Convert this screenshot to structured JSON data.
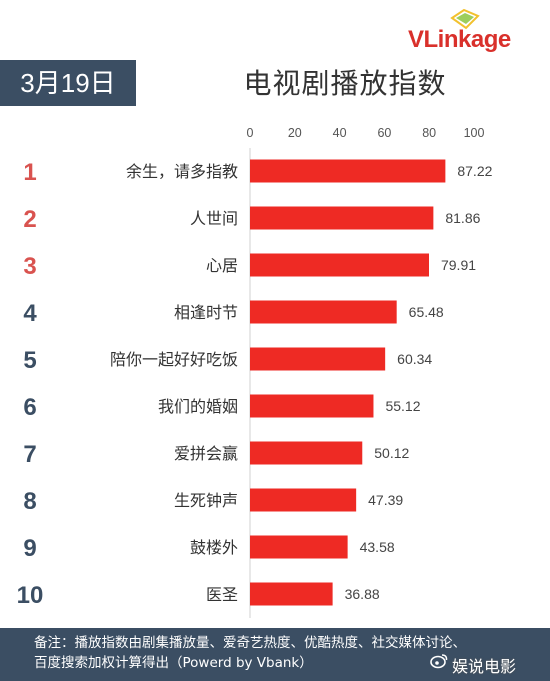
{
  "brand": {
    "logo_text": "VLinkage"
  },
  "date_label": "3月19日",
  "page_title": "电视剧播放指数",
  "chart_data": {
    "type": "bar",
    "orientation": "horizontal",
    "categories": [
      "余生，请多指教",
      "人世间",
      "心居",
      "相逢时节",
      "陪你一起好好吃饭",
      "我们的婚姻",
      "爱拼会赢",
      "生死钟声",
      "鼓楼外",
      "医圣"
    ],
    "ranks": [
      "1",
      "2",
      "3",
      "4",
      "5",
      "6",
      "7",
      "8",
      "9",
      "10"
    ],
    "values": [
      87.22,
      81.86,
      79.91,
      65.48,
      60.34,
      55.12,
      50.12,
      47.39,
      43.58,
      36.88
    ],
    "value_labels": [
      "87.22",
      "81.86",
      "79.91",
      "65.48",
      "60.34",
      "55.12",
      "50.12",
      "47.39",
      "43.58",
      "36.88"
    ],
    "xlim": [
      0,
      100
    ],
    "ticks": [
      "0",
      "20",
      "40",
      "60",
      "80",
      "100"
    ],
    "tick_values": [
      0,
      20,
      40,
      60,
      80,
      100
    ],
    "axis_position": "top",
    "grid": false,
    "colors": {
      "bar": "#ee2a24",
      "rank_top3": "#d9534f",
      "rank_rest": "#3b4e63"
    }
  },
  "footer": {
    "line1": "备注：播放指数由剧集播放量、爱奇艺热度、优酷热度、社交媒体讨论、",
    "line2": "百度搜索加权计算得出（Powerd by Vbank）"
  },
  "watermark": {
    "text": "娱说电影"
  }
}
